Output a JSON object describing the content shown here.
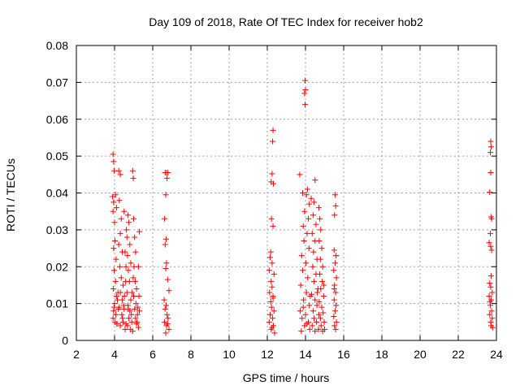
{
  "chart_data": {
    "type": "scatter",
    "title": "Day 109 of 2018, Rate Of TEC Index for receiver hob2",
    "xlabel": "GPS time / hours",
    "ylabel": "ROTI / TECUs",
    "xlim": [
      2,
      24
    ],
    "ylim": [
      0,
      0.08
    ],
    "x_ticks": [
      2,
      4,
      6,
      8,
      10,
      12,
      14,
      16,
      18,
      20,
      22,
      24
    ],
    "y_ticks": [
      0,
      0.01,
      0.02,
      0.03,
      0.04,
      0.05,
      0.06,
      0.07,
      0.08
    ],
    "x_tick_labels": [
      "2",
      "4",
      "6",
      "8",
      "10",
      "12",
      "14",
      "16",
      "18",
      "20",
      "22",
      "24"
    ],
    "y_tick_labels": [
      "0",
      "0.01",
      "0.02",
      "0.03",
      "0.04",
      "0.05",
      "0.06",
      "0.07",
      "0.08"
    ],
    "grid": true,
    "marker": "+",
    "color": "#ff0000",
    "series": [
      {
        "points": [
          [
            3.92,
            0.0505
          ],
          [
            3.95,
            0.0485
          ],
          [
            3.98,
            0.046
          ],
          [
            3.9,
            0.039
          ],
          [
            3.95,
            0.0375
          ],
          [
            4.05,
            0.0395
          ],
          [
            3.92,
            0.035
          ],
          [
            4.0,
            0.032
          ],
          [
            4.1,
            0.036
          ],
          [
            4.02,
            0.027
          ],
          [
            3.95,
            0.025
          ],
          [
            4.08,
            0.022
          ],
          [
            3.98,
            0.019
          ],
          [
            4.05,
            0.016
          ],
          [
            3.93,
            0.014
          ],
          [
            4.1,
            0.012
          ],
          [
            4.0,
            0.01
          ],
          [
            3.95,
            0.008
          ],
          [
            4.07,
            0.007
          ],
          [
            3.92,
            0.006
          ],
          [
            4.03,
            0.005
          ],
          [
            4.12,
            0.0045
          ],
          [
            3.97,
            0.009
          ],
          [
            4.15,
            0.011
          ],
          [
            4.2,
            0.0085
          ],
          [
            4.18,
            0.013
          ],
          [
            4.22,
            0.046
          ],
          [
            4.3,
            0.045
          ],
          [
            4.25,
            0.038
          ],
          [
            4.35,
            0.033
          ],
          [
            4.3,
            0.029
          ],
          [
            4.22,
            0.026
          ],
          [
            4.4,
            0.024
          ],
          [
            4.28,
            0.02
          ],
          [
            4.35,
            0.017
          ],
          [
            4.45,
            0.015
          ],
          [
            4.3,
            0.013
          ],
          [
            4.4,
            0.011
          ],
          [
            4.25,
            0.009
          ],
          [
            4.5,
            0.0085
          ],
          [
            4.38,
            0.007
          ],
          [
            4.45,
            0.005
          ],
          [
            4.3,
            0.004
          ],
          [
            4.55,
            0.003
          ],
          [
            4.6,
            0.0045
          ],
          [
            4.42,
            0.006
          ],
          [
            4.48,
            0.0095
          ],
          [
            4.52,
            0.012
          ],
          [
            4.58,
            0.016
          ],
          [
            4.6,
            0.02
          ],
          [
            4.55,
            0.024
          ],
          [
            4.62,
            0.03
          ],
          [
            4.5,
            0.035
          ],
          [
            4.65,
            0.028
          ],
          [
            4.7,
            0.034
          ],
          [
            4.75,
            0.032
          ],
          [
            4.68,
            0.023
          ],
          [
            4.8,
            0.026
          ],
          [
            4.72,
            0.019
          ],
          [
            4.78,
            0.016
          ],
          [
            4.65,
            0.013
          ],
          [
            4.85,
            0.011
          ],
          [
            4.7,
            0.0095
          ],
          [
            4.8,
            0.008
          ],
          [
            4.75,
            0.006
          ],
          [
            4.9,
            0.005
          ],
          [
            4.68,
            0.004
          ],
          [
            4.82,
            0.003
          ],
          [
            4.95,
            0.0025
          ],
          [
            4.88,
            0.007
          ],
          [
            4.72,
            0.0085
          ],
          [
            4.92,
            0.013
          ],
          [
            4.98,
            0.017
          ],
          [
            4.85,
            0.021
          ],
          [
            4.95,
            0.046
          ],
          [
            4.98,
            0.044
          ],
          [
            5.0,
            0.033
          ],
          [
            5.05,
            0.028
          ],
          [
            5.1,
            0.024
          ],
          [
            5.02,
            0.02
          ],
          [
            5.08,
            0.016
          ],
          [
            5.15,
            0.014
          ],
          [
            5.0,
            0.012
          ],
          [
            5.12,
            0.01
          ],
          [
            5.05,
            0.0085
          ],
          [
            5.2,
            0.007
          ],
          [
            5.1,
            0.006
          ],
          [
            5.18,
            0.005
          ],
          [
            5.25,
            0.0035
          ],
          [
            5.15,
            0.0045
          ],
          [
            5.22,
            0.009
          ],
          [
            5.28,
            0.012
          ],
          [
            5.25,
            0.02
          ],
          [
            5.3,
            0.0295
          ],
          [
            5.3,
            0.008
          ],
          [
            6.65,
            0.0455
          ],
          [
            6.8,
            0.0455
          ],
          [
            6.72,
            0.0455
          ],
          [
            6.75,
            0.044
          ],
          [
            6.68,
            0.0395
          ],
          [
            6.62,
            0.033
          ],
          [
            6.7,
            0.0275
          ],
          [
            6.65,
            0.026
          ],
          [
            6.72,
            0.021
          ],
          [
            6.68,
            0.0195
          ],
          [
            6.78,
            0.0165
          ],
          [
            6.85,
            0.0135
          ],
          [
            6.6,
            0.011
          ],
          [
            6.7,
            0.0095
          ],
          [
            6.65,
            0.0085
          ],
          [
            6.75,
            0.007
          ],
          [
            6.8,
            0.006
          ],
          [
            6.62,
            0.005
          ],
          [
            6.72,
            0.004
          ],
          [
            6.85,
            0.003
          ],
          [
            6.68,
            0.002
          ],
          [
            6.78,
            0.0045
          ],
          [
            12.15,
            0.0225
          ],
          [
            12.1,
            0.019
          ],
          [
            12.2,
            0.016
          ],
          [
            12.25,
            0.0145
          ],
          [
            12.12,
            0.013
          ],
          [
            12.3,
            0.012
          ],
          [
            12.18,
            0.0105
          ],
          [
            12.22,
            0.009
          ],
          [
            12.35,
            0.008
          ],
          [
            12.15,
            0.007
          ],
          [
            12.28,
            0.006
          ],
          [
            12.1,
            0.005
          ],
          [
            12.32,
            0.004
          ],
          [
            12.2,
            0.003
          ],
          [
            12.38,
            0.002
          ],
          [
            12.25,
            0.0035
          ],
          [
            12.3,
            0.0115
          ],
          [
            12.35,
            0.018
          ],
          [
            12.3,
            0.057
          ],
          [
            12.28,
            0.054
          ],
          [
            12.25,
            0.0452
          ],
          [
            12.2,
            0.043
          ],
          [
            12.32,
            0.0425
          ],
          [
            12.22,
            0.033
          ],
          [
            12.3,
            0.031
          ],
          [
            12.18,
            0.024
          ],
          [
            12.25,
            0.021
          ],
          [
            13.7,
            0.045
          ],
          [
            13.98,
            0.0705
          ],
          [
            14.0,
            0.068
          ],
          [
            13.95,
            0.067
          ],
          [
            13.98,
            0.064
          ],
          [
            14.1,
            0.041
          ],
          [
            14.05,
            0.0395
          ],
          [
            13.85,
            0.04
          ],
          [
            14.2,
            0.037
          ],
          [
            13.95,
            0.035
          ],
          [
            14.15,
            0.033
          ],
          [
            13.88,
            0.031
          ],
          [
            14.08,
            0.029
          ],
          [
            13.92,
            0.027
          ],
          [
            14.18,
            0.025
          ],
          [
            13.8,
            0.023
          ],
          [
            14.02,
            0.021
          ],
          [
            13.85,
            0.019
          ],
          [
            14.12,
            0.017
          ],
          [
            13.75,
            0.015
          ],
          [
            14.05,
            0.013
          ],
          [
            13.9,
            0.011
          ],
          [
            14.2,
            0.0095
          ],
          [
            13.72,
            0.008
          ],
          [
            14.0,
            0.007
          ],
          [
            13.82,
            0.006
          ],
          [
            14.15,
            0.005
          ],
          [
            13.95,
            0.004
          ],
          [
            14.22,
            0.003
          ],
          [
            13.78,
            0.0025
          ],
          [
            14.08,
            0.0045
          ],
          [
            13.88,
            0.009
          ],
          [
            14.25,
            0.012
          ],
          [
            14.3,
            0.0385
          ],
          [
            14.5,
            0.0435
          ],
          [
            14.45,
            0.0375
          ],
          [
            14.4,
            0.034
          ],
          [
            14.55,
            0.0315
          ],
          [
            14.35,
            0.029
          ],
          [
            14.5,
            0.027
          ],
          [
            14.42,
            0.024
          ],
          [
            14.6,
            0.022
          ],
          [
            14.38,
            0.02
          ],
          [
            14.55,
            0.018
          ],
          [
            14.45,
            0.016
          ],
          [
            14.65,
            0.014
          ],
          [
            14.32,
            0.0125
          ],
          [
            14.5,
            0.011
          ],
          [
            14.6,
            0.0095
          ],
          [
            14.4,
            0.008
          ],
          [
            14.7,
            0.007
          ],
          [
            14.45,
            0.006
          ],
          [
            14.58,
            0.005
          ],
          [
            14.35,
            0.004
          ],
          [
            14.68,
            0.003
          ],
          [
            14.5,
            0.0025
          ],
          [
            14.62,
            0.013
          ],
          [
            14.7,
            0.036
          ],
          [
            14.75,
            0.033
          ],
          [
            14.8,
            0.03
          ],
          [
            14.72,
            0.027
          ],
          [
            14.85,
            0.025
          ],
          [
            14.78,
            0.022
          ],
          [
            14.9,
            0.02
          ],
          [
            14.75,
            0.018
          ],
          [
            14.88,
            0.016
          ],
          [
            14.8,
            0.014
          ],
          [
            14.95,
            0.012
          ],
          [
            14.72,
            0.0105
          ],
          [
            14.85,
            0.009
          ],
          [
            14.92,
            0.0075
          ],
          [
            14.78,
            0.006
          ],
          [
            14.98,
            0.005
          ],
          [
            14.82,
            0.004
          ],
          [
            15.0,
            0.003
          ],
          [
            14.9,
            0.0025
          ],
          [
            14.95,
            0.015
          ],
          [
            15.55,
            0.0395
          ],
          [
            15.58,
            0.0365
          ],
          [
            15.52,
            0.034
          ],
          [
            15.5,
            0.0245
          ],
          [
            15.6,
            0.023
          ],
          [
            15.55,
            0.021
          ],
          [
            15.48,
            0.019
          ],
          [
            15.62,
            0.017
          ],
          [
            15.52,
            0.015
          ],
          [
            15.58,
            0.013
          ],
          [
            15.5,
            0.011
          ],
          [
            15.6,
            0.0095
          ],
          [
            15.55,
            0.008
          ],
          [
            15.48,
            0.0065
          ],
          [
            15.62,
            0.005
          ],
          [
            15.52,
            0.004
          ],
          [
            15.58,
            0.003
          ],
          [
            15.5,
            0.014
          ],
          [
            23.7,
            0.054
          ],
          [
            23.72,
            0.0525
          ],
          [
            23.68,
            0.051
          ],
          [
            23.7,
            0.0455
          ],
          [
            23.65,
            0.0402
          ],
          [
            23.72,
            0.0335
          ],
          [
            23.75,
            0.033
          ],
          [
            23.68,
            0.029
          ],
          [
            23.62,
            0.0265
          ],
          [
            23.7,
            0.0255
          ],
          [
            23.75,
            0.0245
          ],
          [
            23.72,
            0.0175
          ],
          [
            23.65,
            0.0155
          ],
          [
            23.7,
            0.0145
          ],
          [
            23.78,
            0.013
          ],
          [
            23.62,
            0.012
          ],
          [
            23.72,
            0.011
          ],
          [
            23.68,
            0.0095
          ],
          [
            23.75,
            0.008
          ],
          [
            23.65,
            0.007
          ],
          [
            23.78,
            0.006
          ],
          [
            23.7,
            0.005
          ],
          [
            23.72,
            0.004
          ],
          [
            23.8,
            0.0035
          ],
          [
            23.66,
            0.0105
          ]
        ]
      }
    ]
  }
}
